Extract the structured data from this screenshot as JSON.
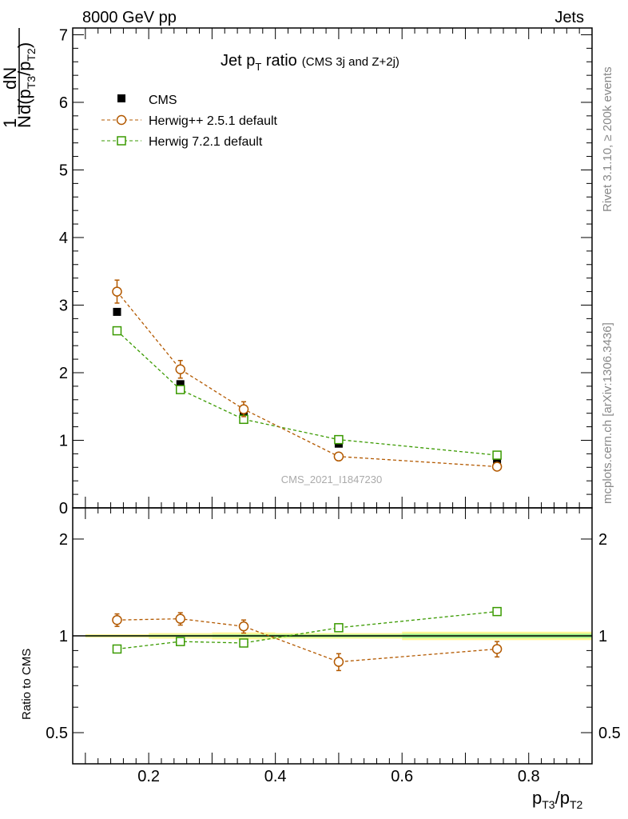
{
  "header": {
    "left": "8000 GeV pp",
    "right": "Jets"
  },
  "side_text": {
    "rivet": "Rivet 3.1.10, ≥ 200k events",
    "mcplots": "mcplots.cern.ch [arXiv:1306.3436]"
  },
  "watermark": "CMS_2021_I1847230",
  "colors": {
    "cms": "#000000",
    "herwigpp": "#b35900",
    "herwig7": "#3a9a00",
    "band_outer": "#fff799",
    "band_inner": "#99ee88"
  },
  "chart_data": [
    {
      "type": "scatter",
      "title_main": "Jet p",
      "title_sub": "T",
      "title_rest": " ratio",
      "title_small": "(CMS 3j and Z+2j)",
      "ylabel_parts": {
        "one": "1",
        "N": "N",
        "dN": "dN",
        "denom": "d(p",
        "sub1": "T3",
        "slash": "/p",
        "sub2": "T2",
        "close": ")"
      },
      "xlim": [
        0.08,
        0.9
      ],
      "ylim": [
        0,
        7.1
      ],
      "yticks": [
        0,
        1,
        2,
        3,
        4,
        5,
        6,
        7
      ],
      "x": [
        0.15,
        0.25,
        0.35,
        0.5,
        0.75
      ],
      "bins": [
        [
          0.1,
          0.2
        ],
        [
          0.2,
          0.3
        ],
        [
          0.3,
          0.4
        ],
        [
          0.4,
          0.6
        ],
        [
          0.6,
          0.9
        ]
      ],
      "legend": [
        "CMS",
        "Herwig++ 2.5.1 default",
        "Herwig 7.2.1 default"
      ],
      "legend_position": "top-left",
      "series": [
        {
          "name": "CMS",
          "values": [
            2.9,
            1.83,
            1.38,
            0.95,
            0.67
          ],
          "errors": [
            0.03,
            0.03,
            0.03,
            0.03,
            0.03
          ],
          "marker": "filled-square"
        },
        {
          "name": "Herwig++ 2.5.1 default",
          "values": [
            3.2,
            2.05,
            1.46,
            0.76,
            0.61
          ],
          "errors": [
            0.17,
            0.13,
            0.11,
            0.05,
            0.04
          ],
          "marker": "open-circle"
        },
        {
          "name": "Herwig 7.2.1 default",
          "values": [
            2.62,
            1.75,
            1.31,
            1.01,
            0.78
          ],
          "errors": [
            0.02,
            0.02,
            0.02,
            0.02,
            0.02
          ],
          "marker": "open-square"
        }
      ]
    },
    {
      "type": "scatter",
      "ylabel": "Ratio to CMS",
      "yscale": "log",
      "xlabel_parts": {
        "p": "p",
        "sub1": "T3",
        "slash": "/p",
        "sub2": "T2"
      },
      "xlim": [
        0.08,
        0.9
      ],
      "ylim": [
        0.4,
        2.5
      ],
      "yticks": [
        0.5,
        1,
        2
      ],
      "ytick_labels": [
        "0.5",
        "1",
        "2"
      ],
      "xticks": [
        0.2,
        0.4,
        0.6,
        0.8
      ],
      "xtick_labels": [
        "0.2",
        "0.4",
        "0.6",
        "0.8"
      ],
      "x": [
        0.15,
        0.25,
        0.35,
        0.5,
        0.75
      ],
      "band_outer": [
        0.012,
        0.02,
        0.025,
        0.02,
        0.03
      ],
      "band_inner": [
        0.005,
        0.008,
        0.01,
        0.01,
        0.015
      ],
      "series": [
        {
          "name": "Herwig++ 2.5.1 default",
          "values": [
            1.12,
            1.13,
            1.07,
            0.83,
            0.91
          ],
          "errors": [
            0.05,
            0.05,
            0.05,
            0.05,
            0.05
          ]
        },
        {
          "name": "Herwig 7.2.1 default",
          "values": [
            0.91,
            0.96,
            0.95,
            1.06,
            1.19
          ],
          "errors": [
            0.005,
            0.005,
            0.005,
            0.005,
            0.005
          ]
        }
      ]
    }
  ]
}
